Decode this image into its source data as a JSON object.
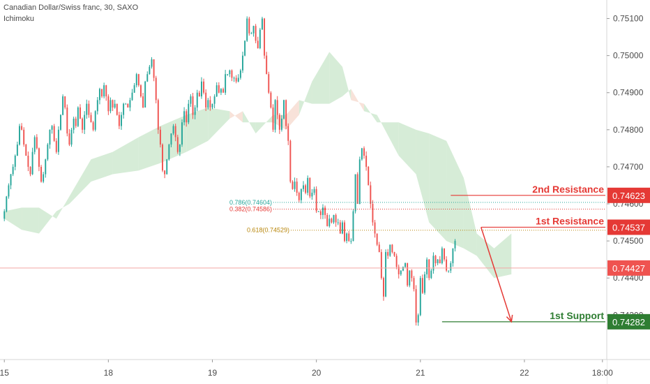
{
  "header": {
    "title": "Canadian Dollar/Swiss franc, 30, SAXO",
    "indicator": "Ichimoku"
  },
  "colors": {
    "up": "#26a69a",
    "down": "#ef5350",
    "cloud_bull": "#c8e6c9",
    "cloud_bear": "#f6d8cc",
    "resistance": "#e53935",
    "support": "#2e7d32",
    "fib786": "#26a69a",
    "fib382": "#e53935",
    "fib618": "#b8860b"
  },
  "chart_data": {
    "type": "candlestick",
    "title": "Canadian Dollar/Swiss franc, 30, SAXO",
    "ylim": [
      0.7418,
      0.7515
    ],
    "y_ticks": [
      0.751,
      0.75,
      0.749,
      0.748,
      0.747,
      0.746,
      0.745,
      0.744,
      0.743
    ],
    "y_tick_labels": [
      "0.75100",
      "0.75000",
      "0.74900",
      "0.74800",
      "0.74700",
      "0.74600",
      "0.74500",
      "0.74400",
      "0.74300"
    ],
    "x_ticks": [
      {
        "label": "15",
        "t": 0
      },
      {
        "label": "18",
        "t": 48
      },
      {
        "label": "19",
        "t": 96
      },
      {
        "label": "20",
        "t": 144
      },
      {
        "label": "21",
        "t": 192
      },
      {
        "label": "22",
        "t": 240
      },
      {
        "label": "18:00",
        "t": 276
      }
    ],
    "x_range": [
      -2,
      278
    ],
    "close": [
      0.7458,
      0.7462,
      0.7465,
      0.7468,
      0.747,
      0.7473,
      0.7476,
      0.7481,
      0.748,
      0.7476,
      0.7473,
      0.747,
      0.7468,
      0.7474,
      0.7478,
      0.7475,
      0.747,
      0.7466,
      0.7468,
      0.7472,
      0.7476,
      0.748,
      0.7481,
      0.7477,
      0.7474,
      0.748,
      0.7484,
      0.7489,
      0.7486,
      0.7479,
      0.7476,
      0.748,
      0.7483,
      0.7481,
      0.7486,
      0.7483,
      0.748,
      0.7484,
      0.7487,
      0.7484,
      0.7482,
      0.748,
      0.7485,
      0.7488,
      0.7491,
      0.7489,
      0.7492,
      0.7489,
      0.7485,
      0.7488,
      0.7486,
      0.7487,
      0.7484,
      0.7481,
      0.7484,
      0.7487,
      0.7487,
      0.7486,
      0.7488,
      0.749,
      0.7492,
      0.7495,
      0.7492,
      0.7489,
      0.7486,
      0.7493,
      0.7495,
      0.7497,
      0.7499,
      0.7494,
      0.7488,
      0.748,
      0.7476,
      0.7469,
      0.7468,
      0.7472,
      0.7476,
      0.7479,
      0.7481,
      0.7478,
      0.7474,
      0.7476,
      0.7482,
      0.7485,
      0.7482,
      0.7487,
      0.7489,
      0.7484,
      0.7486,
      0.749,
      0.7489,
      0.7493,
      0.749,
      0.7486,
      0.7488,
      0.7486,
      0.7487,
      0.7489,
      0.7492,
      0.749,
      0.7491,
      0.749,
      0.7495,
      0.7495,
      0.7496,
      0.7494,
      0.7494,
      0.7493,
      0.7494,
      0.7496,
      0.75,
      0.7504,
      0.751,
      0.7506,
      0.7506,
      0.7508,
      0.7504,
      0.7502,
      0.7507,
      0.751,
      0.75,
      0.7495,
      0.749,
      0.7486,
      0.748,
      0.7488,
      0.7484,
      0.748,
      0.7483,
      0.7488,
      0.7481,
      0.7477,
      0.7466,
      0.7464,
      0.7466,
      0.7463,
      0.7461,
      0.7464,
      0.7465,
      0.7463,
      0.7467,
      0.7462,
      0.7463,
      0.7464,
      0.7458,
      0.7458,
      0.7457,
      0.7459,
      0.7457,
      0.7454,
      0.7456,
      0.7455,
      0.7457,
      0.7455,
      0.7455,
      0.7452,
      0.7455,
      0.745,
      0.7452,
      0.745,
      0.745,
      0.7458,
      0.7468,
      0.746,
      0.7472,
      0.7475,
      0.7473,
      0.747,
      0.7465,
      0.746,
      0.7455,
      0.7452,
      0.7449,
      0.7447,
      0.744,
      0.7435,
      0.7447,
      0.7446,
      0.7449,
      0.7447,
      0.7446,
      0.7443,
      0.7441,
      0.7442,
      0.7443,
      0.7444,
      0.7438,
      0.7442,
      0.744,
      0.7437,
      0.7428,
      0.743,
      0.744,
      0.7436,
      0.7441,
      0.7445,
      0.744,
      0.7442,
      0.7446,
      0.7444,
      0.7445,
      0.7444,
      0.7448,
      0.7445,
      0.7442,
      0.7442,
      0.7444,
      0.7448,
      0.745
    ],
    "ichimoku_cloud": [
      {
        "t": 0,
        "a": 0.7458,
        "b": 0.7456
      },
      {
        "t": 8,
        "a": 0.7459,
        "b": 0.7453
      },
      {
        "t": 16,
        "a": 0.7459,
        "b": 0.7452
      },
      {
        "t": 24,
        "a": 0.7456,
        "b": 0.7458
      },
      {
        "t": 30,
        "a": 0.7462,
        "b": 0.746
      },
      {
        "t": 40,
        "a": 0.7472,
        "b": 0.7466
      },
      {
        "t": 50,
        "a": 0.7474,
        "b": 0.7468
      },
      {
        "t": 62,
        "a": 0.7478,
        "b": 0.7469
      },
      {
        "t": 72,
        "a": 0.7481,
        "b": 0.7471
      },
      {
        "t": 84,
        "a": 0.7484,
        "b": 0.7474
      },
      {
        "t": 94,
        "a": 0.7486,
        "b": 0.7477
      },
      {
        "t": 104,
        "a": 0.7485,
        "b": 0.7483
      },
      {
        "t": 110,
        "a": 0.7482,
        "b": 0.7485
      },
      {
        "t": 116,
        "a": 0.7482,
        "b": 0.7479
      },
      {
        "t": 124,
        "a": 0.7482,
        "b": 0.7484
      },
      {
        "t": 130,
        "a": 0.748,
        "b": 0.7484
      },
      {
        "t": 136,
        "a": 0.7484,
        "b": 0.7488
      },
      {
        "t": 142,
        "a": 0.7493,
        "b": 0.7487
      },
      {
        "t": 150,
        "a": 0.7501,
        "b": 0.7487
      },
      {
        "t": 156,
        "a": 0.7497,
        "b": 0.7489
      },
      {
        "t": 160,
        "a": 0.7488,
        "b": 0.7491
      },
      {
        "t": 166,
        "a": 0.7487,
        "b": 0.7485
      },
      {
        "t": 172,
        "a": 0.7482,
        "b": 0.7484
      },
      {
        "t": 182,
        "a": 0.7482,
        "b": 0.7473
      },
      {
        "t": 190,
        "a": 0.748,
        "b": 0.7468
      },
      {
        "t": 196,
        "a": 0.7479,
        "b": 0.7455
      },
      {
        "t": 204,
        "a": 0.7477,
        "b": 0.745
      },
      {
        "t": 212,
        "a": 0.7467,
        "b": 0.7448
      },
      {
        "t": 218,
        "a": 0.7452,
        "b": 0.7446
      },
      {
        "t": 226,
        "a": 0.7448,
        "b": 0.744
      },
      {
        "t": 234,
        "a": 0.7452,
        "b": 0.7441
      }
    ],
    "levels": [
      {
        "name": "2nd Resistance",
        "price": 0.74623,
        "price_label": "0.74623",
        "t_start": 206
      },
      {
        "name": "1st Resistance",
        "price": 0.74537,
        "price_label": "0.74537",
        "t_start": 220
      },
      {
        "name": "1st Support",
        "price": 0.74282,
        "price_label": "0.74282",
        "t_start": 202
      }
    ],
    "fib_levels": [
      {
        "label": "0.786(0.74604)",
        "price": 0.74604
      },
      {
        "label": "0.382(0.74586)",
        "price": 0.74586
      },
      {
        "label": "0.618(0.74529)",
        "price": 0.74529
      }
    ],
    "current_price": {
      "price": 0.74427,
      "label": "0.74427"
    },
    "projection": {
      "from": {
        "t": 220,
        "price": 0.74537
      },
      "to": {
        "t": 234,
        "price": 0.74282
      }
    }
  }
}
